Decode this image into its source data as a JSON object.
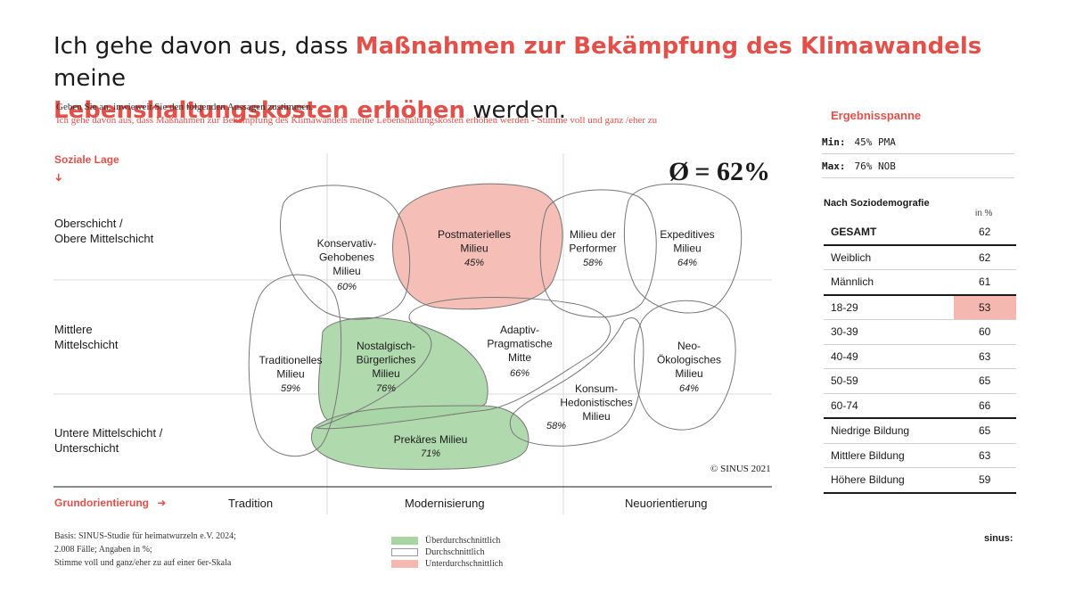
{
  "title": {
    "part1": "Ich gehe davon aus, dass ",
    "highlight1": "Maßnahmen zur Bekämpfung des Klimawandels",
    "part2": " meine ",
    "highlight2": "Lebenshaltungskosten erhöhen",
    "part3": " werden."
  },
  "question": {
    "line1": "Geben Sie an, inwieweit Sie den folgenden Aussagen zustimmen.",
    "line2": "Ich gehe davon aus, dass Maßnahmen zur Bekämpfung des Klimawandels meine Lebenshaltungskosten erhöhen werden - Stimme voll und ganz /eher zu"
  },
  "axes": {
    "y_head": "Soziale Lage",
    "y_arrow": "➜",
    "rows": [
      "Oberschicht /\nObere Mittelschicht",
      "Mittlere\nMittelschicht",
      "Untere Mittelschicht /\nUnterschicht"
    ],
    "x_head": "Grundorientierung",
    "x_arrow": "➜",
    "columns": [
      "Tradition",
      "Modernisierung",
      "Neuorientierung"
    ]
  },
  "average": {
    "symbol": "Ø",
    "text": "= 62%"
  },
  "copyright": "© SINUS 2021",
  "colors": {
    "accent": "#e2504a",
    "above": "#a9d5a5",
    "below": "#f4b8b0",
    "average": "#ffffff"
  },
  "chart_data": {
    "type": "bubble-map",
    "title": "Ich gehe davon aus, dass Maßnahmen zur Bekämpfung des Klimawandels meine Lebenshaltungskosten erhöhen werden.",
    "xlabel": "Grundorientierung",
    "ylabel": "Soziale Lage",
    "average_percent": 62,
    "milieus": [
      {
        "name": "Konservativ-\nGehobenes\nMilieu",
        "value": 60,
        "label": "60%",
        "category": "average"
      },
      {
        "name": "Postmaterielles\nMilieu",
        "value": 45,
        "label": "45%",
        "category": "below"
      },
      {
        "name": "Milieu der\nPerformer",
        "value": 58,
        "label": "58%",
        "category": "average"
      },
      {
        "name": "Expeditives\nMilieu",
        "value": 64,
        "label": "64%",
        "category": "average"
      },
      {
        "name": "Traditionelles\nMilieu",
        "value": 59,
        "label": "59%",
        "category": "average"
      },
      {
        "name": "Nostalgisch-\nBürgerliches\nMilieu",
        "value": 76,
        "label": "76%",
        "category": "above"
      },
      {
        "name": "Adaptiv-\nPragmatische\nMitte",
        "value": 66,
        "label": "66%",
        "category": "average"
      },
      {
        "name": "Neo-\nÖkologisches\nMilieu",
        "value": 64,
        "label": "64%",
        "category": "average"
      },
      {
        "name": "Konsum-\nHedonistisches\nMilieu",
        "value": 58,
        "label": "58%",
        "category": "average"
      },
      {
        "name": "Prekäres Milieu",
        "value": 71,
        "label": "71%",
        "category": "above"
      }
    ]
  },
  "legend": [
    {
      "label": "Überdurchschnittlich",
      "color": "#a9d5a5"
    },
    {
      "label": "Durchschnittlich",
      "color": "#ffffff"
    },
    {
      "label": "Unterdurchschnittlich",
      "color": "#f4b8b0"
    }
  ],
  "basis": {
    "line1": "Basis: SINUS-Studie für heimatwurzeln e.V. 2024;",
    "line2": "2.008 Fälle; Angaben in %;",
    "line3": "Stimme voll und ganz/eher zu auf einer 6er-Skala"
  },
  "ergebnisspanne": {
    "head": "Ergebnisspanne",
    "min_label": "Min:",
    "min_value": "45% PMA",
    "max_label": "Max:",
    "max_value": "76% NOB"
  },
  "soziodemografie": {
    "head": "Nach Soziodemografie",
    "unit": "in %",
    "rows": [
      {
        "label": "GESAMT",
        "value": "62"
      },
      {
        "label": "Weiblich",
        "value": "62"
      },
      {
        "label": "Männlich",
        "value": "61"
      },
      {
        "label": "18-29",
        "value": "53"
      },
      {
        "label": "30-39",
        "value": "60"
      },
      {
        "label": "40-49",
        "value": "63"
      },
      {
        "label": "50-59",
        "value": "65"
      },
      {
        "label": "60-74",
        "value": "66"
      },
      {
        "label": "Niedrige Bildung",
        "value": "65"
      },
      {
        "label": "Mittlere Bildung",
        "value": "63"
      },
      {
        "label": "Höhere Bildung",
        "value": "59"
      }
    ]
  },
  "brand": "sinus:"
}
